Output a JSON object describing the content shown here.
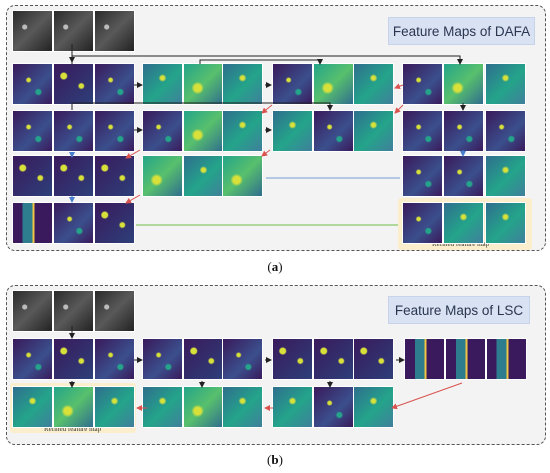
{
  "panel_a": {
    "title": "Feature Maps of DAFA",
    "caption_letter": "a",
    "highlight_label": "Refined feature map"
  },
  "panel_b": {
    "title": "Feature Maps of LSC",
    "caption_letter": "b",
    "highlight_label": "Refined feature map"
  },
  "colors": {
    "panel_border": "#555555",
    "panel_bg": "#f3f3f3",
    "title_bg": "#d9e2f3",
    "highlight_bg": "#fbeecd",
    "arrow_black": "#222222",
    "arrow_red": "#d9534f",
    "arrow_blue": "#4a7fd0",
    "arrow_green": "#6fbf4a",
    "map_dark": "#3a1a5c",
    "map_mid": "#2f6e8e",
    "map_teal": "#24a48a",
    "map_yellow": "#d8e13a"
  }
}
